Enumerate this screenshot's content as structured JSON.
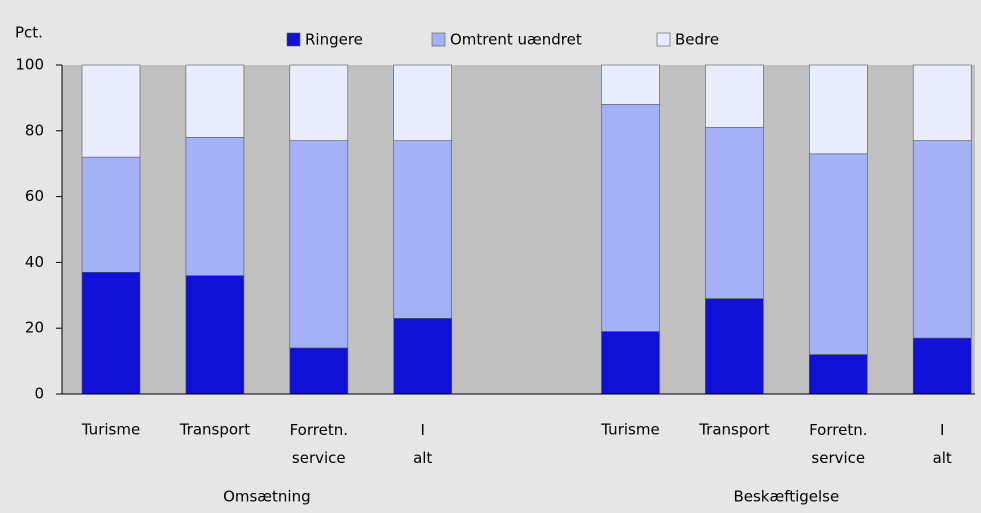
{
  "chart_data": {
    "type": "stacked_bar",
    "y_label": "Pct.",
    "categories": [
      "Turisme",
      "Transport",
      "Forretn. service",
      "I alt",
      null,
      "Turisme",
      "Transport",
      "Forretn. service",
      "I alt"
    ],
    "groups": [
      {
        "name": "Omsætning",
        "from": 0,
        "to": 3
      },
      {
        "name": "Beskæftigelse",
        "from": 5,
        "to": 8
      }
    ],
    "series": [
      {
        "name": "Ringere",
        "color": "#1010d6",
        "values": [
          37,
          36,
          14,
          23,
          null,
          19,
          29,
          12,
          17
        ]
      },
      {
        "name": "Omtrent uændret",
        "color": "#a3b1f7",
        "values": [
          35,
          42,
          63,
          54,
          null,
          69,
          52,
          61,
          60
        ]
      },
      {
        "name": "Bedre",
        "color": "#e9ecfc",
        "values": [
          28,
          22,
          23,
          23,
          null,
          12,
          19,
          27,
          23
        ]
      }
    ],
    "ylim": [
      0,
      100
    ],
    "yticks": [
      0,
      20,
      40,
      60,
      80,
      100
    ],
    "grid": false,
    "legend": "top"
  }
}
